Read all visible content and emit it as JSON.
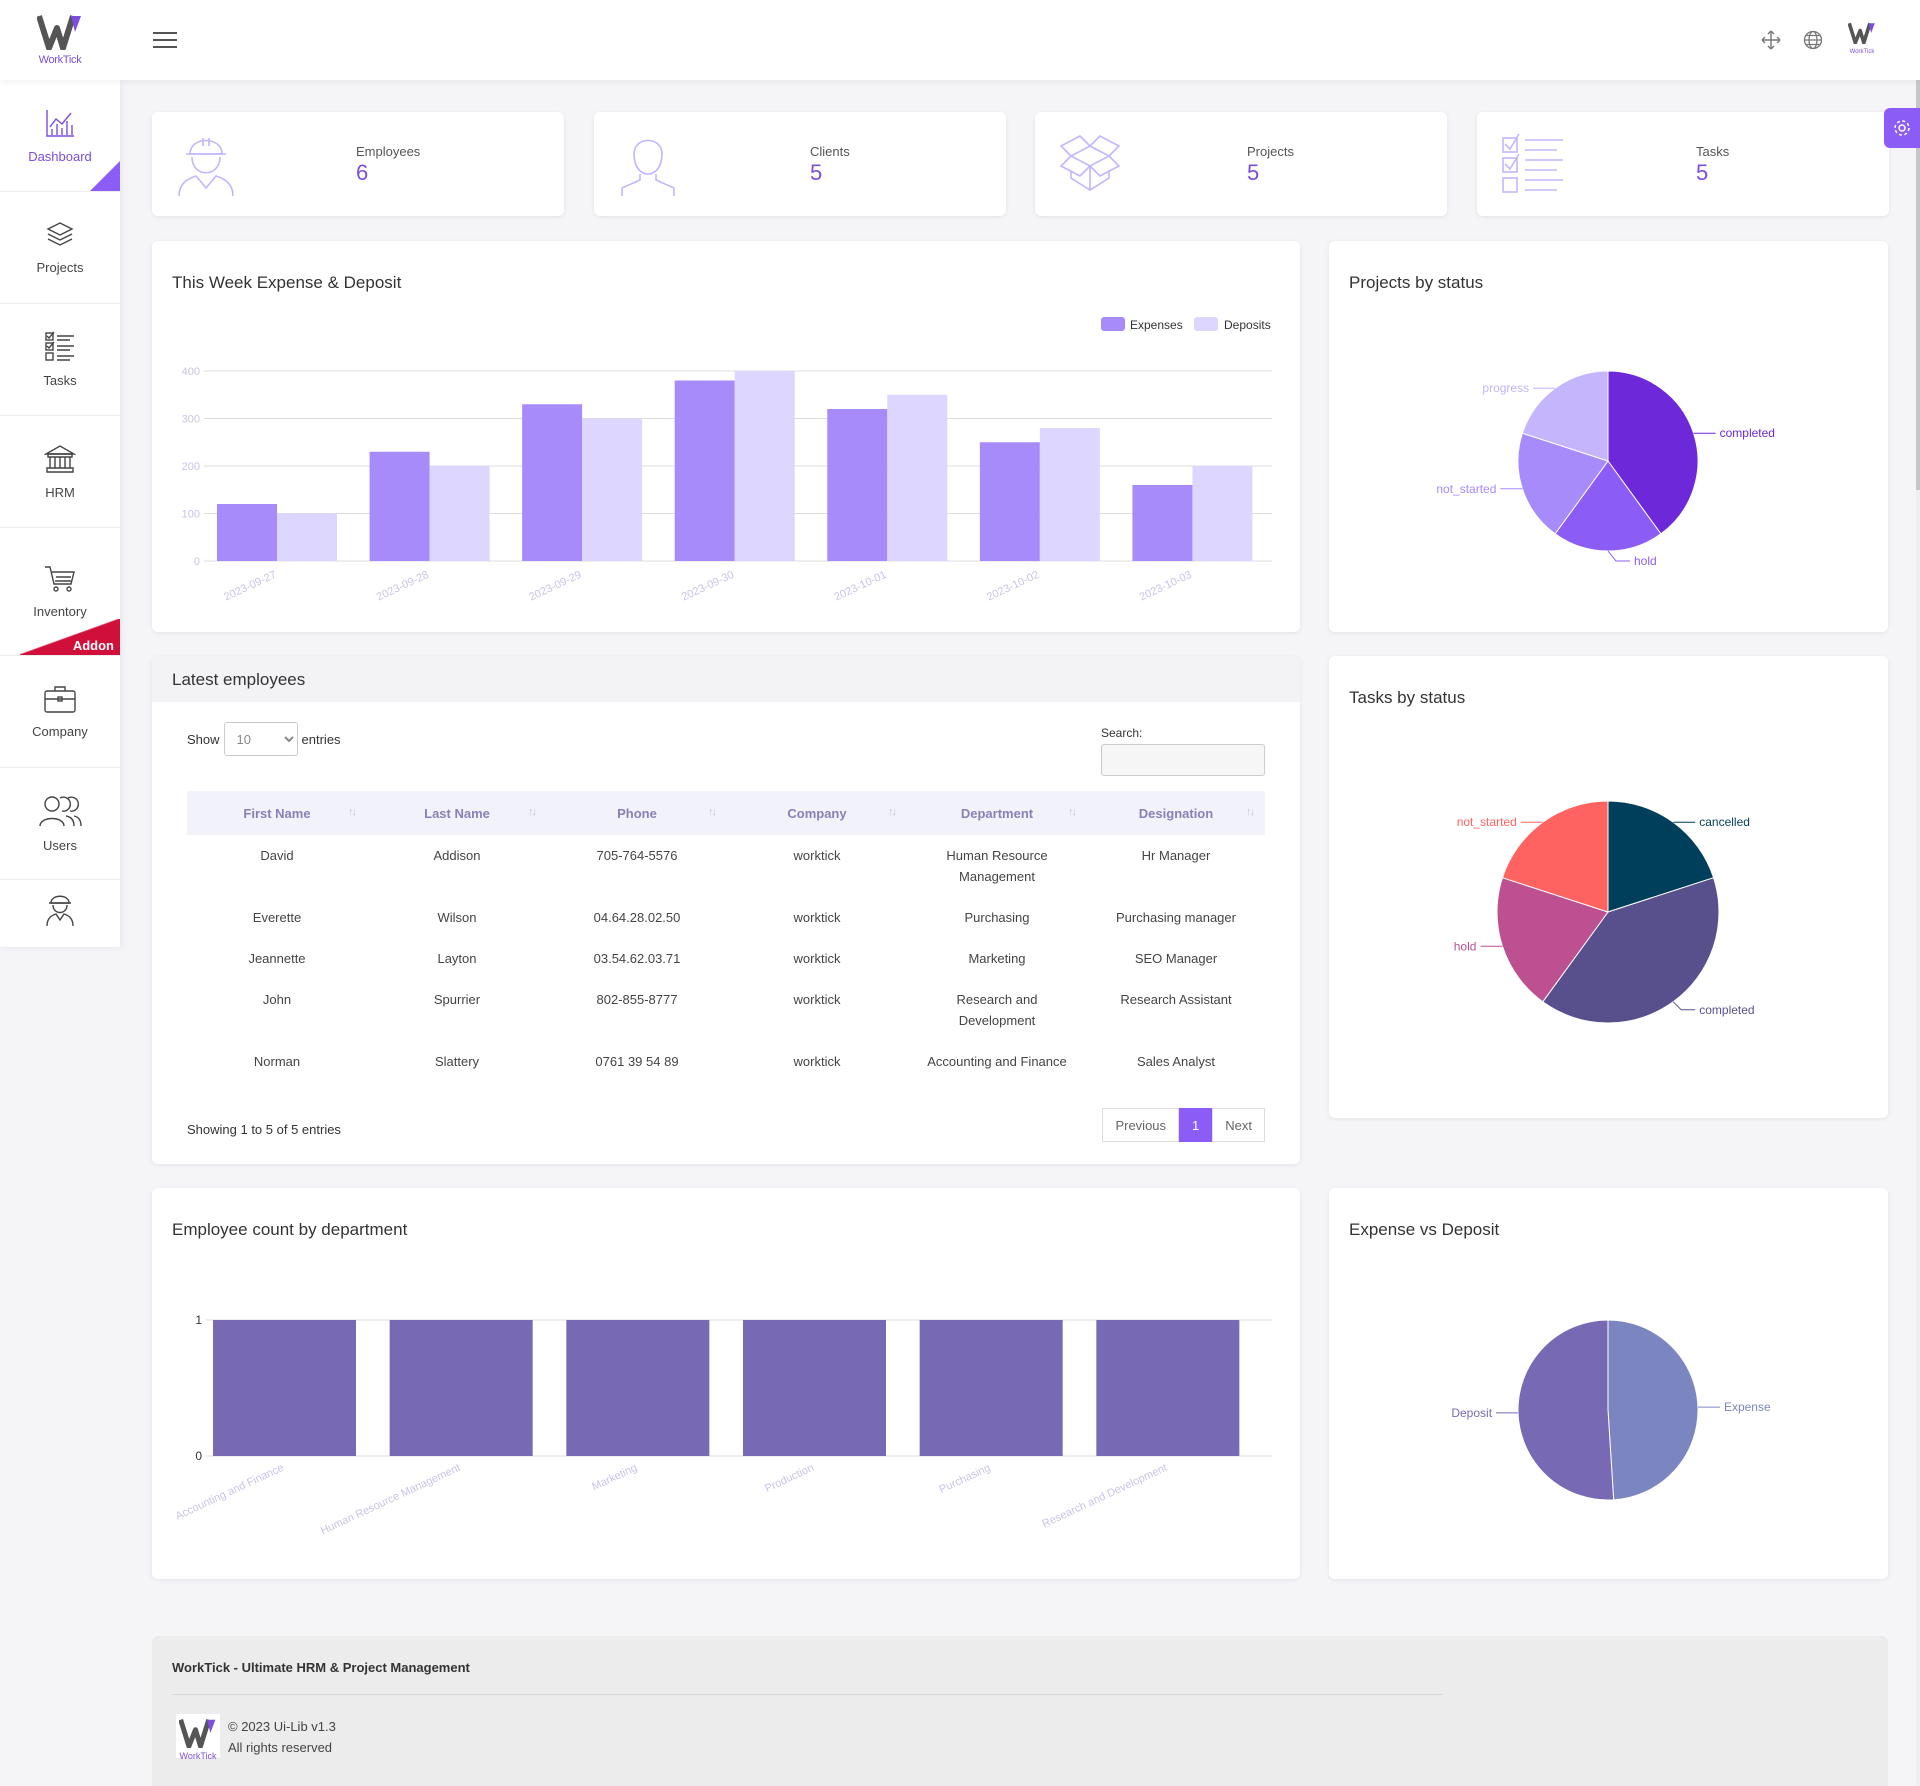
{
  "app": {
    "brand": "WorkTick"
  },
  "sidebar": {
    "items": [
      {
        "label": "Dashboard",
        "icon": "chart-icon"
      },
      {
        "label": "Projects",
        "icon": "layers-icon"
      },
      {
        "label": "Tasks",
        "icon": "checklist-icon"
      },
      {
        "label": "HRM",
        "icon": "bank-icon"
      },
      {
        "label": "Inventory",
        "icon": "cart-icon",
        "badge": "Addon"
      },
      {
        "label": "Company",
        "icon": "briefcase-icon"
      },
      {
        "label": "Users",
        "icon": "users-icon"
      },
      {
        "label": "",
        "icon": "worker-icon"
      }
    ]
  },
  "stats": [
    {
      "label": "Employees",
      "value": "6",
      "icon": "worker-icon"
    },
    {
      "label": "Clients",
      "value": "5",
      "icon": "user-icon"
    },
    {
      "label": "Projects",
      "value": "5",
      "icon": "box-icon"
    },
    {
      "label": "Tasks",
      "value": "5",
      "icon": "checklist-icon"
    }
  ],
  "expense_chart": {
    "title": "This Week Expense & Deposit",
    "legend": [
      "Expenses",
      "Deposits"
    ]
  },
  "projects_chart": {
    "title": "Projects by status"
  },
  "tasks_chart": {
    "title": "Tasks by status"
  },
  "dept_chart": {
    "title": "Employee count by department"
  },
  "expdep_chart": {
    "title": "Expense vs Deposit"
  },
  "colors": {
    "accent": "#8b5cf6",
    "expenses": "#a78bfa",
    "deposits": "#ddd6fe",
    "dept_bar": "#7769b3"
  },
  "chart_data": [
    {
      "type": "bar",
      "title": "This Week Expense & Deposit",
      "categories": [
        "2023-09-27",
        "2023-09-28",
        "2023-09-29",
        "2023-09-30",
        "2023-10-01",
        "2023-10-02",
        "2023-10-03"
      ],
      "series": [
        {
          "name": "Expenses",
          "values": [
            120,
            230,
            330,
            380,
            320,
            250,
            160
          ]
        },
        {
          "name": "Deposits",
          "values": [
            100,
            200,
            300,
            400,
            350,
            280,
            200
          ]
        }
      ],
      "yticks": [
        "0",
        "100",
        "200",
        "300",
        "400"
      ],
      "ylim": [
        0,
        400
      ],
      "grid": true,
      "legend": "top-right"
    },
    {
      "type": "pie",
      "title": "Projects by status",
      "labels": [
        "completed",
        "hold",
        "not_started",
        "progress"
      ],
      "values": [
        2,
        1,
        1,
        1
      ],
      "colors": [
        "#6d28d9",
        "#8b5cf6",
        "#a78bfa",
        "#c4b5fd"
      ]
    },
    {
      "type": "pie",
      "title": "Tasks by status",
      "labels": [
        "cancelled",
        "completed",
        "hold",
        "not_started"
      ],
      "values": [
        1,
        2,
        1,
        1
      ],
      "colors": [
        "#003f5c",
        "#58508d",
        "#bc5090",
        "#ff6361"
      ]
    },
    {
      "type": "bar",
      "title": "Employee count by department",
      "categories": [
        "Accounting and Finance",
        "Human Resource Management",
        "Marketing",
        "Production",
        "Purchasing",
        "Research and Development"
      ],
      "values": [
        1,
        1,
        1,
        1,
        1,
        1
      ],
      "yticks": [
        "0",
        "1"
      ],
      "ylim": [
        0,
        1
      ],
      "grid": true
    },
    {
      "type": "pie",
      "title": "Expense vs Deposit",
      "labels": [
        "Expense",
        "Deposit"
      ],
      "values": [
        49,
        51
      ],
      "colors": [
        "#7b86c0",
        "#7769b3"
      ]
    }
  ],
  "employees": {
    "title": "Latest employees",
    "show_label": "Show",
    "entries_label": "entries",
    "page_size": "10",
    "search_label": "Search:",
    "columns": [
      "First Name",
      "Last Name",
      "Phone",
      "Company",
      "Department",
      "Designation"
    ],
    "rows": [
      [
        "David",
        "Addison",
        "705-764-5576",
        "worktick",
        "Human Resource Management",
        "Hr Manager"
      ],
      [
        "Everette",
        "Wilson",
        "04.64.28.02.50",
        "worktick",
        "Purchasing",
        "Purchasing manager"
      ],
      [
        "Jeannette",
        "Layton",
        "03.54.62.03.71",
        "worktick",
        "Marketing",
        "SEO Manager"
      ],
      [
        "John",
        "Spurrier",
        "802-855-8777",
        "worktick",
        "Research and Development",
        "Research Assistant"
      ],
      [
        "Norman",
        "Slattery",
        "0761 39 54 89",
        "worktick",
        "Accounting and Finance",
        "Sales Analyst"
      ]
    ],
    "info": "Showing 1 to 5 of 5 entries",
    "pager": {
      "previous": "Previous",
      "current": "1",
      "next": "Next"
    }
  },
  "footer": {
    "title": "WorkTick - Ultimate HRM & Project Management",
    "copyright": "© 2023 Ui-Lib v1.3",
    "rights": "All rights reserved"
  }
}
